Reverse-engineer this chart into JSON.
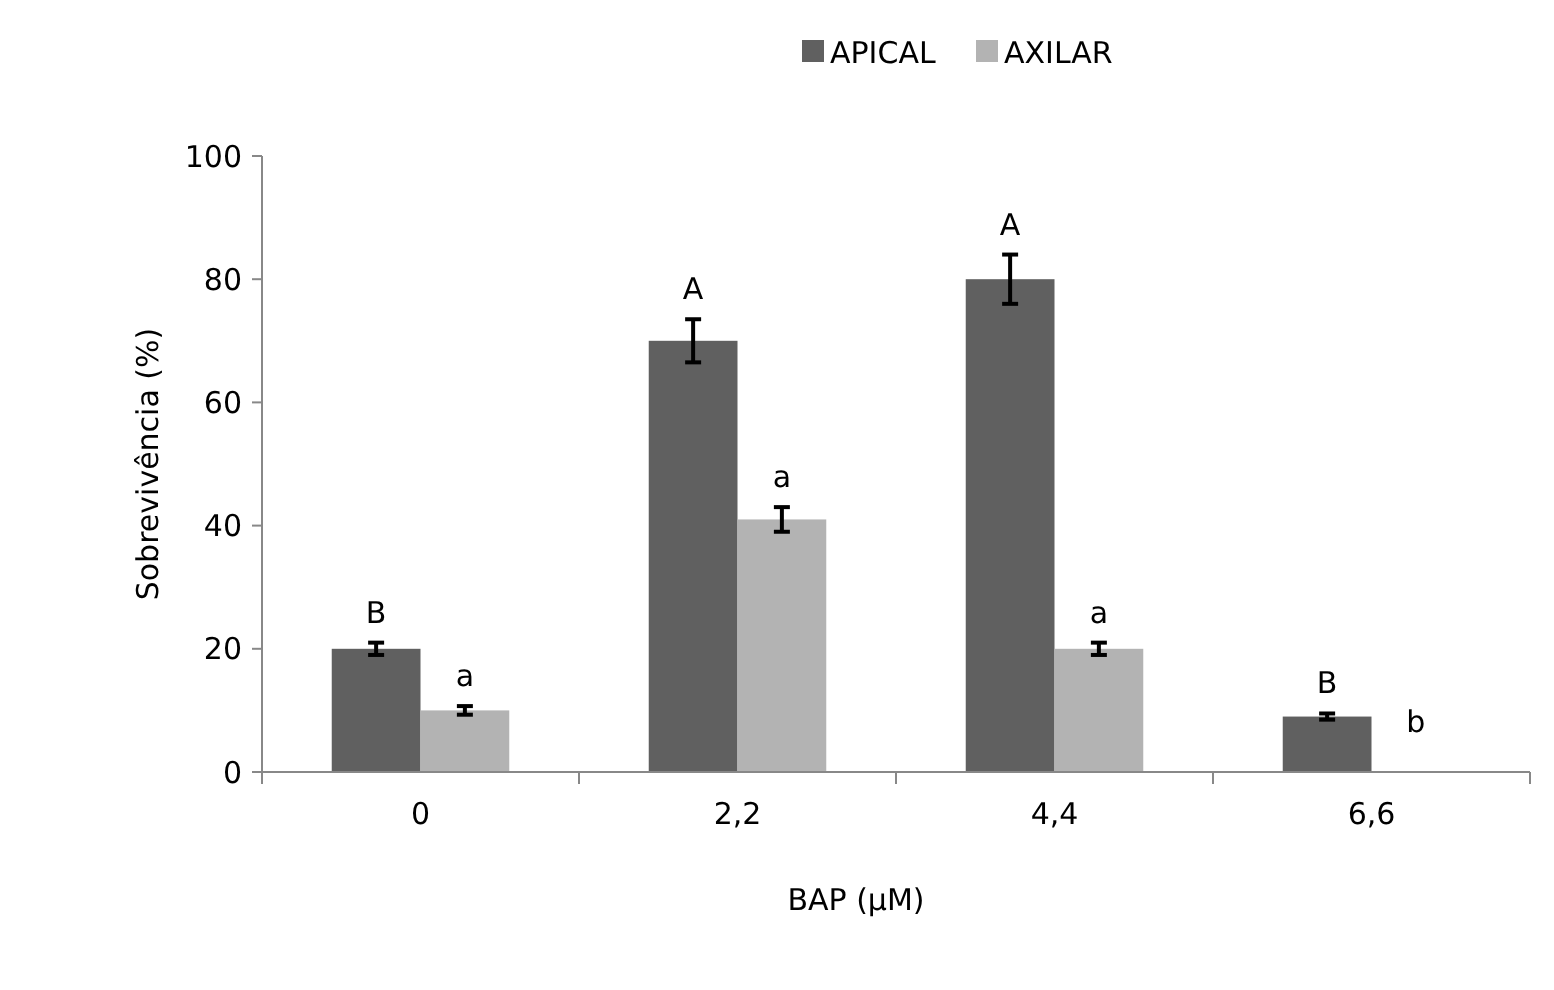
{
  "chart_data": {
    "type": "bar",
    "xlabel": "BAP (µM)",
    "ylabel": "Sobrevivência (%)",
    "categories": [
      "0",
      "2,2",
      "4,4",
      "6,6"
    ],
    "series": [
      {
        "name": "APICAL",
        "color": "#606060",
        "values": [
          20,
          70,
          80,
          9
        ],
        "errors": [
          1,
          3.5,
          4,
          0.5
        ]
      },
      {
        "name": "AXILAR",
        "color": "#b3b3b3",
        "values": [
          10,
          41,
          20,
          0
        ],
        "errors": [
          0.7,
          2,
          1,
          null
        ]
      }
    ],
    "ylim": [
      0,
      100
    ],
    "yticks": [
      0,
      20,
      40,
      60,
      80,
      100
    ],
    "grid": false,
    "legend": "top",
    "annotations": [
      {
        "text": "B",
        "x": "0",
        "y": 20
      },
      {
        "text": "a",
        "x": "0",
        "y": 10
      },
      {
        "text": "A",
        "x": "2,2",
        "y": 70
      },
      {
        "text": "a",
        "x": "2,2",
        "y": 41
      },
      {
        "text": "A",
        "x": "4,4",
        "y": 80
      },
      {
        "text": "a",
        "x": "4,4",
        "y": 20
      },
      {
        "text": "B",
        "x": "6,6",
        "y": 9
      },
      {
        "text": "b",
        "x": "6,6",
        "y": 0
      }
    ]
  }
}
